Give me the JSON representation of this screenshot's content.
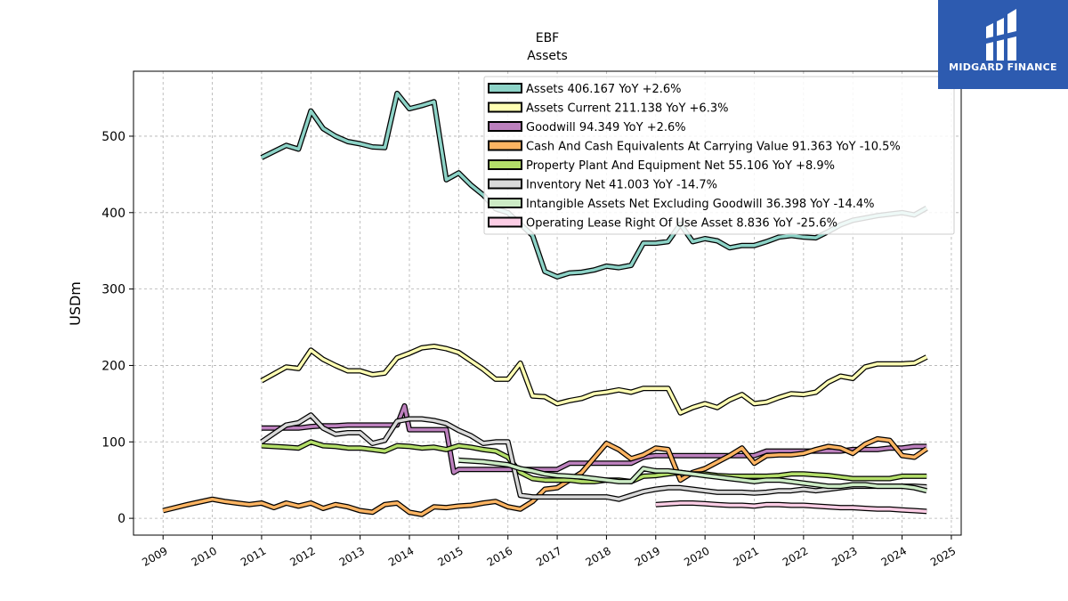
{
  "brand": {
    "name": "MIDGARD FINANCE",
    "bg_color": "#2d5bb0"
  },
  "chart_data": {
    "type": "line",
    "title": "EBF",
    "subtitle": "Assets",
    "xlabel": "",
    "ylabel": "USDm",
    "xlim": [
      2008.4,
      2025.2
    ],
    "ylim": [
      -22,
      585
    ],
    "x_ticks": [
      2009,
      2010,
      2011,
      2012,
      2013,
      2014,
      2015,
      2016,
      2017,
      2018,
      2019,
      2020,
      2021,
      2022,
      2023,
      2024,
      2025
    ],
    "y_ticks": [
      0,
      100,
      200,
      300,
      400,
      500
    ],
    "grid": true,
    "legend_position": "top-right",
    "series": [
      {
        "name": "Assets  406.167 YoY +2.6%",
        "color": "#8dd3c7",
        "x": [
          2011.0,
          2011.5,
          2011.75,
          2012.0,
          2012.25,
          2012.5,
          2012.75,
          2013.0,
          2013.25,
          2013.5,
          2013.75,
          2014.0,
          2014.25,
          2014.5,
          2014.75,
          2015.0,
          2015.25,
          2015.5,
          2015.75,
          2016.0,
          2016.25,
          2016.5,
          2016.75,
          2017.0,
          2017.25,
          2017.5,
          2017.75,
          2018.0,
          2018.25,
          2018.5,
          2018.75,
          2019.0,
          2019.25,
          2019.5,
          2019.75,
          2020.0,
          2020.25,
          2020.5,
          2020.75,
          2021.0,
          2021.25,
          2021.5,
          2021.75,
          2022.0,
          2022.25,
          2022.5,
          2022.75,
          2023.0,
          2023.25,
          2023.5,
          2023.75,
          2024.0,
          2024.25,
          2024.5
        ],
        "y": [
          472,
          488,
          483,
          533,
          510,
          500,
          493,
          490,
          486,
          485,
          556,
          536,
          540,
          545,
          443,
          452,
          436,
          423,
          405,
          400,
          385,
          370,
          323,
          316,
          321,
          322,
          325,
          330,
          328,
          331,
          360,
          360,
          362,
          385,
          362,
          366,
          363,
          354,
          357,
          357,
          362,
          368,
          370,
          368,
          367,
          375,
          384,
          390,
          393,
          396,
          398,
          400,
          397,
          406
        ]
      },
      {
        "name": "Assets Current  211.138 YoY +6.3%",
        "color": "#ffffb3",
        "x": [
          2011.0,
          2011.5,
          2011.75,
          2012.0,
          2012.25,
          2012.5,
          2012.75,
          2013.0,
          2013.25,
          2013.5,
          2013.75,
          2014.0,
          2014.25,
          2014.5,
          2014.75,
          2015.0,
          2015.25,
          2015.5,
          2015.75,
          2016.0,
          2016.25,
          2016.5,
          2016.75,
          2017.0,
          2017.25,
          2017.5,
          2017.75,
          2018.0,
          2018.25,
          2018.5,
          2018.75,
          2019.0,
          2019.25,
          2019.5,
          2019.75,
          2020.0,
          2020.25,
          2020.5,
          2020.75,
          2021.0,
          2021.25,
          2021.5,
          2021.75,
          2022.0,
          2022.25,
          2022.5,
          2022.75,
          2023.0,
          2023.25,
          2023.5,
          2023.75,
          2024.0,
          2024.25,
          2024.5
        ],
        "y": [
          180,
          198,
          196,
          220,
          208,
          200,
          193,
          193,
          188,
          190,
          210,
          216,
          223,
          225,
          222,
          217,
          206,
          195,
          182,
          182,
          203,
          160,
          159,
          150,
          154,
          157,
          163,
          165,
          168,
          165,
          170,
          170,
          170,
          138,
          145,
          150,
          145,
          155,
          162,
          150,
          152,
          158,
          163,
          162,
          165,
          178,
          186,
          183,
          198,
          202,
          202,
          202,
          203,
          211
        ]
      },
      {
        "name": "Goodwill  94.349 YoY +2.6%",
        "color": "#bc80bd",
        "x": [
          2011.0,
          2011.5,
          2011.75,
          2012.0,
          2012.25,
          2012.5,
          2012.75,
          2013.0,
          2013.25,
          2013.5,
          2013.75,
          2013.9,
          2014.0,
          2014.25,
          2014.5,
          2014.75,
          2014.9,
          2015.0,
          2015.25,
          2015.5,
          2015.75,
          2016.0,
          2016.25,
          2016.5,
          2016.75,
          2017.0,
          2017.25,
          2017.5,
          2017.75,
          2018.0,
          2018.25,
          2018.5,
          2018.75,
          2019.0,
          2019.25,
          2019.5,
          2019.75,
          2020.0,
          2020.25,
          2020.5,
          2020.75,
          2021.0,
          2021.25,
          2021.5,
          2021.75,
          2022.0,
          2022.25,
          2022.5,
          2022.75,
          2023.0,
          2023.25,
          2023.5,
          2023.75,
          2024.0,
          2024.25,
          2024.5
        ],
        "y": [
          118,
          118,
          118,
          120,
          121,
          121,
          122,
          122,
          122,
          122,
          122,
          147,
          116,
          116,
          116,
          116,
          60,
          64,
          64,
          64,
          64,
          64,
          64,
          64,
          64,
          64,
          72,
          72,
          72,
          72,
          72,
          72,
          80,
          82,
          82,
          82,
          82,
          82,
          82,
          82,
          82,
          82,
          88,
          88,
          88,
          88,
          88,
          88,
          88,
          90,
          90,
          90,
          92,
          92,
          94,
          94
        ]
      },
      {
        "name": "Cash And Cash Equivalents At Carrying Value  91.363 YoY -10.5%",
        "color": "#fdb462",
        "x": [
          2009.0,
          2009.5,
          2010.0,
          2010.25,
          2010.5,
          2010.75,
          2011.0,
          2011.25,
          2011.5,
          2011.75,
          2012.0,
          2012.25,
          2012.5,
          2012.75,
          2013.0,
          2013.25,
          2013.5,
          2013.75,
          2014.0,
          2014.25,
          2014.5,
          2014.75,
          2015.0,
          2015.25,
          2015.5,
          2015.75,
          2016.0,
          2016.25,
          2016.5,
          2016.75,
          2017.0,
          2017.5,
          2018.0,
          2018.25,
          2018.5,
          2018.75,
          2019.0,
          2019.25,
          2019.5,
          2019.75,
          2020.0,
          2020.5,
          2020.75,
          2021.0,
          2021.25,
          2021.5,
          2021.75,
          2022.0,
          2022.25,
          2022.5,
          2022.75,
          2023.0,
          2023.25,
          2023.5,
          2023.75,
          2024.0,
          2024.25,
          2024.5
        ],
        "y": [
          10,
          18,
          25,
          22,
          20,
          18,
          20,
          14,
          20,
          16,
          20,
          13,
          18,
          15,
          10,
          8,
          18,
          20,
          8,
          5,
          15,
          14,
          16,
          17,
          20,
          22,
          15,
          12,
          22,
          38,
          40,
          60,
          98,
          90,
          78,
          83,
          92,
          90,
          50,
          60,
          65,
          82,
          92,
          72,
          82,
          83,
          83,
          85,
          90,
          94,
          92,
          85,
          97,
          104,
          102,
          82,
          80,
          91
        ]
      },
      {
        "name": "Property Plant And Equipment Net  55.106 YoY +8.9%",
        "color": "#b3de69",
        "x": [
          2011.0,
          2011.5,
          2011.75,
          2012.0,
          2012.25,
          2012.5,
          2012.75,
          2013.0,
          2013.25,
          2013.5,
          2013.75,
          2014.0,
          2014.25,
          2014.5,
          2014.75,
          2015.0,
          2015.25,
          2015.5,
          2015.75,
          2016.0,
          2016.25,
          2016.5,
          2016.75,
          2017.0,
          2017.25,
          2017.5,
          2017.75,
          2018.0,
          2018.25,
          2018.5,
          2018.75,
          2019.0,
          2019.25,
          2019.5,
          2019.75,
          2020.0,
          2020.25,
          2020.5,
          2020.75,
          2021.0,
          2021.25,
          2021.5,
          2021.75,
          2022.0,
          2022.25,
          2022.5,
          2022.75,
          2023.0,
          2023.25,
          2023.5,
          2023.75,
          2024.0,
          2024.25,
          2024.5
        ],
        "y": [
          95,
          93,
          92,
          100,
          95,
          94,
          92,
          92,
          90,
          88,
          95,
          94,
          92,
          93,
          90,
          95,
          93,
          90,
          88,
          80,
          60,
          52,
          50,
          50,
          50,
          48,
          48,
          50,
          50,
          48,
          55,
          56,
          58,
          60,
          58,
          58,
          56,
          55,
          55,
          55,
          55,
          56,
          58,
          58,
          57,
          56,
          54,
          52,
          52,
          52,
          52,
          55,
          55,
          55
        ]
      },
      {
        "name": "Inventory Net  41.003 YoY -14.7%",
        "color": "#d9d9d9",
        "x": [
          2011.0,
          2011.5,
          2011.75,
          2012.0,
          2012.25,
          2012.5,
          2012.75,
          2013.0,
          2013.25,
          2013.5,
          2013.75,
          2014.0,
          2014.25,
          2014.5,
          2014.75,
          2015.0,
          2015.25,
          2015.5,
          2015.75,
          2016.0,
          2016.25,
          2016.5,
          2016.75,
          2017.0,
          2017.25,
          2017.5,
          2017.75,
          2018.0,
          2018.25,
          2018.5,
          2018.75,
          2019.0,
          2019.25,
          2019.5,
          2019.75,
          2020.0,
          2020.25,
          2020.5,
          2020.75,
          2021.0,
          2021.25,
          2021.5,
          2021.75,
          2022.0,
          2022.25,
          2022.5,
          2022.75,
          2023.0,
          2023.25,
          2023.5,
          2023.75,
          2024.0,
          2024.25,
          2024.5
        ],
        "y": [
          100,
          122,
          125,
          135,
          118,
          110,
          112,
          112,
          98,
          102,
          127,
          130,
          130,
          128,
          124,
          115,
          108,
          98,
          100,
          100,
          30,
          28,
          28,
          28,
          28,
          28,
          28,
          28,
          25,
          30,
          35,
          38,
          40,
          40,
          38,
          36,
          34,
          34,
          34,
          33,
          34,
          36,
          36,
          38,
          36,
          38,
          40,
          42,
          42,
          42,
          42,
          42,
          42,
          41
        ]
      },
      {
        "name": "Intangible Assets Net Excluding Goodwill  36.398 YoY -14.4%",
        "color": "#ccebc5",
        "x": [
          2015.0,
          2015.5,
          2015.75,
          2016.0,
          2016.25,
          2016.5,
          2016.75,
          2017.0,
          2017.25,
          2017.5,
          2017.75,
          2018.0,
          2018.25,
          2018.5,
          2018.75,
          2019.0,
          2019.25,
          2019.5,
          2019.75,
          2020.0,
          2020.25,
          2020.5,
          2020.75,
          2021.0,
          2021.25,
          2021.5,
          2021.75,
          2022.0,
          2022.25,
          2022.5,
          2022.75,
          2023.0,
          2023.25,
          2023.5,
          2023.75,
          2024.0,
          2024.25,
          2024.5
        ],
        "y": [
          76,
          74,
          72,
          70,
          65,
          62,
          58,
          56,
          55,
          54,
          52,
          50,
          48,
          48,
          65,
          62,
          62,
          60,
          58,
          56,
          54,
          52,
          50,
          48,
          50,
          50,
          48,
          46,
          44,
          42,
          42,
          44,
          44,
          42,
          42,
          42,
          40,
          36
        ]
      },
      {
        "name": "Operating Lease Right Of Use Asset  8.836 YoY -25.6%",
        "color": "#fccde5",
        "x": [
          2019.0,
          2019.5,
          2019.75,
          2020.0,
          2020.25,
          2020.5,
          2020.75,
          2021.0,
          2021.25,
          2021.5,
          2021.75,
          2022.0,
          2022.25,
          2022.5,
          2022.75,
          2023.0,
          2023.25,
          2023.5,
          2023.75,
          2024.0,
          2024.25,
          2024.5
        ],
        "y": [
          18,
          20,
          20,
          19,
          18,
          17,
          17,
          16,
          18,
          18,
          17,
          17,
          16,
          15,
          14,
          14,
          13,
          12,
          12,
          11,
          10,
          9
        ]
      }
    ]
  }
}
